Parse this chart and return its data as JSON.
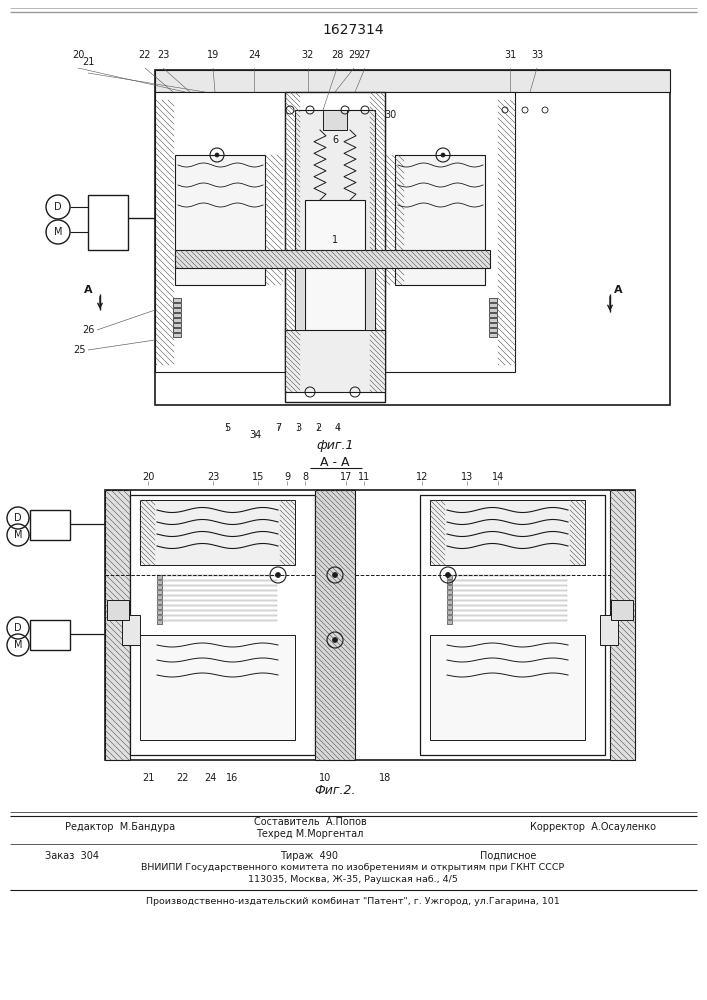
{
  "patent_number": "1627314",
  "bg_color": "#ffffff",
  "line_color": "#1a1a1a",
  "fig1_label": "фиг.1",
  "fig2_label": "Фиг.2.",
  "section_label": "А - А",
  "footer_editor": "Редактор  М.Бандура",
  "footer_composer": "Составитель  А.Попов",
  "footer_tech": "Техред М.Моргентал",
  "footer_corrector": "Корректор  А.Осауленко",
  "footer_order": "Заказ  304",
  "footer_print": "Тираж  490",
  "footer_sign": "Подписное",
  "footer_vniiipi": "ВНИИПИ Государственного комитета по изобретениям и открытиям при ГКНТ СССР",
  "footer_address": "113035, Москва, Ж-35, Раушская наб., 4/5",
  "footer_publisher": "Производственно-издательский комбинат \"Патент\", г. Ужгород, ул.Гагарина, 101",
  "border_color": "#888888"
}
